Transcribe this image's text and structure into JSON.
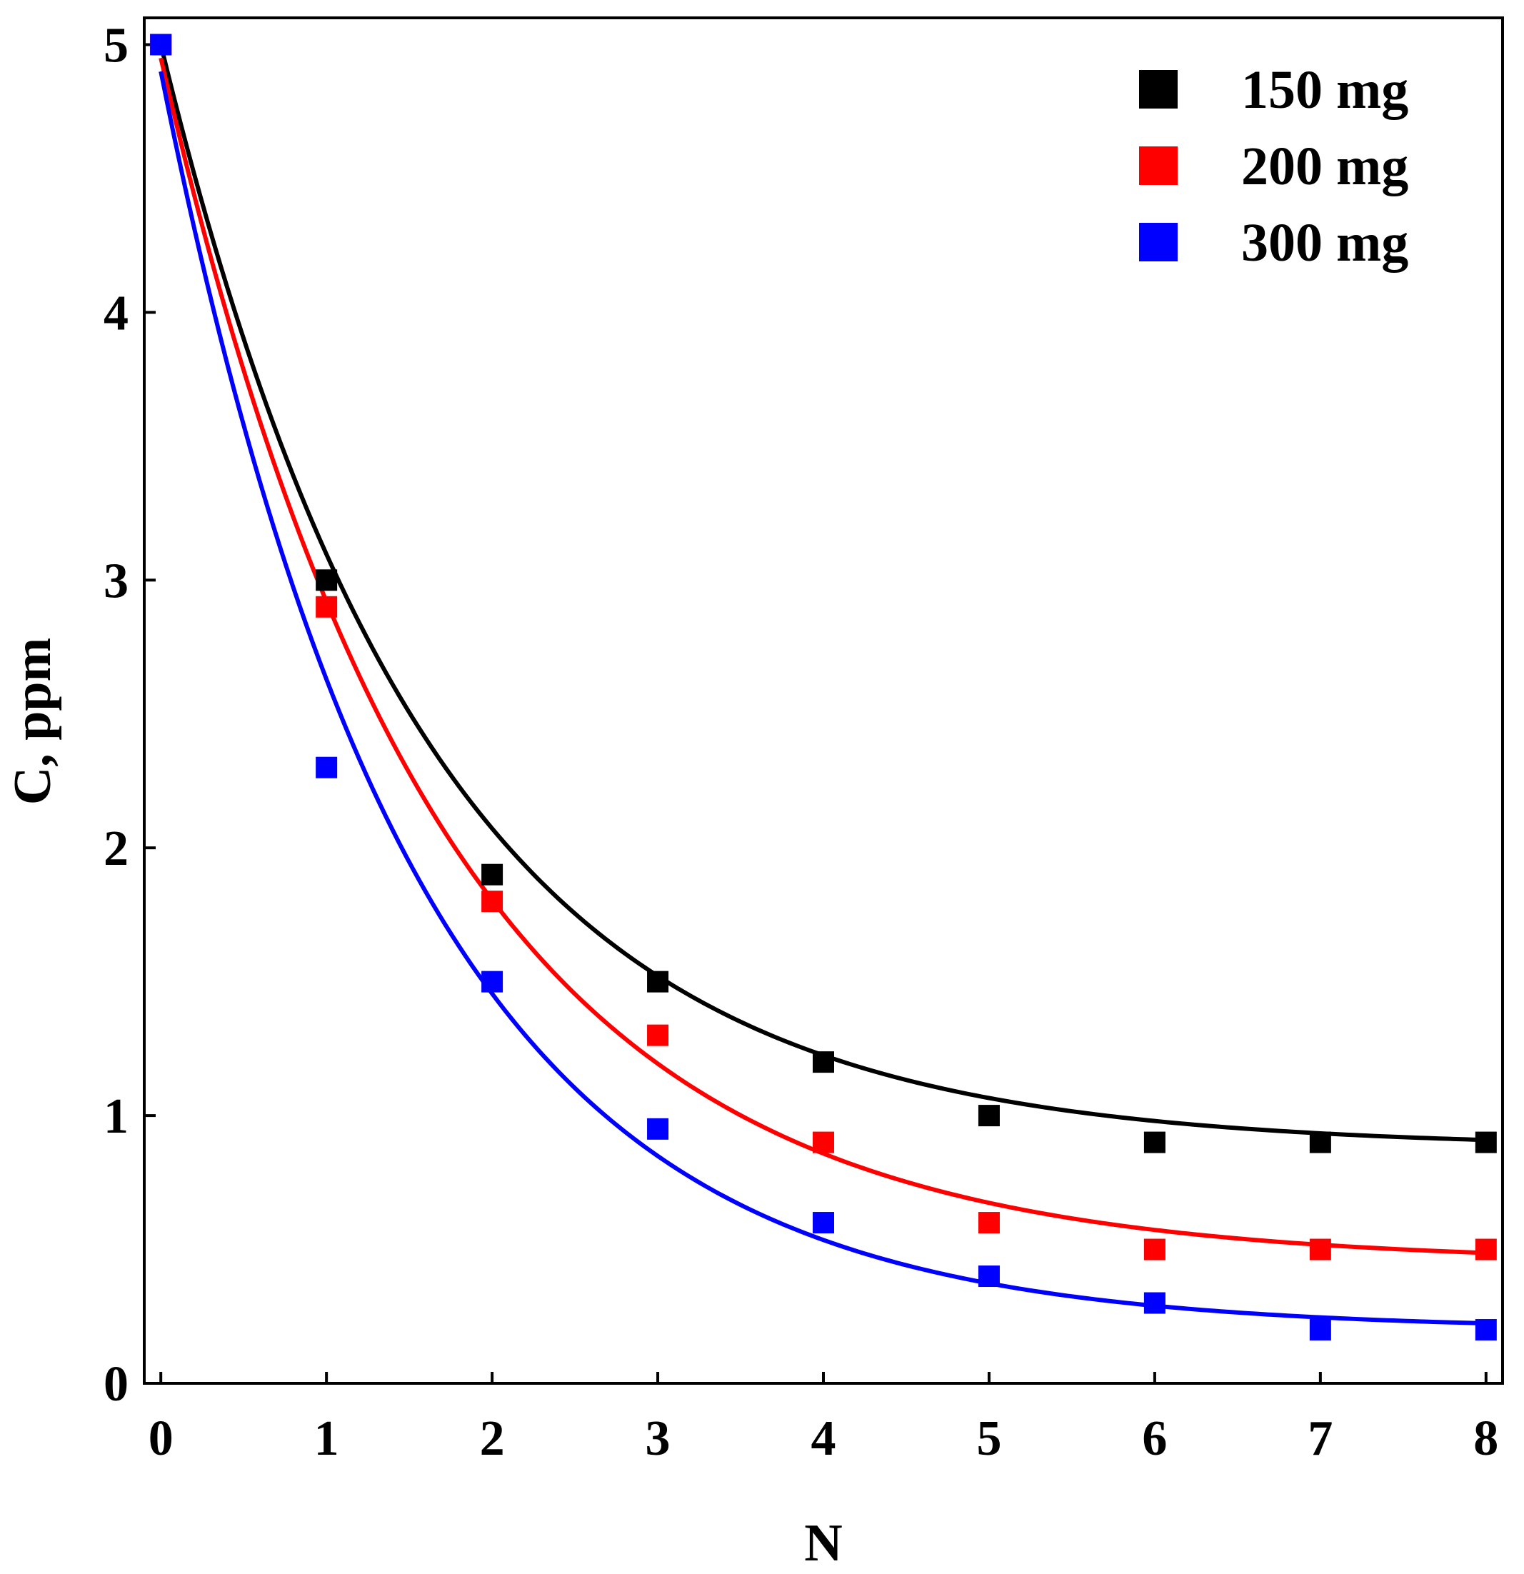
{
  "chart_data": {
    "type": "scatter",
    "title": "",
    "xlabel": "N",
    "ylabel": "C, ppm",
    "xlim": [
      -0.1,
      8.1
    ],
    "ylim": [
      0,
      5.1
    ],
    "xticks": [
      0,
      1,
      2,
      3,
      4,
      5,
      6,
      7,
      8
    ],
    "yticks": [
      0,
      1,
      2,
      3,
      4,
      5
    ],
    "xtick_labels": [
      "0",
      "1",
      "2",
      "3",
      "4",
      "5",
      "6",
      "7",
      "8"
    ],
    "ytick_labels": [
      "0",
      "1",
      "2",
      "3",
      "4",
      "5"
    ],
    "grid": false,
    "legend_position": "top-right",
    "x": [
      0,
      1,
      2,
      3,
      4,
      5,
      6,
      7,
      8
    ],
    "series": [
      {
        "name": "150 mg",
        "color": "#000000",
        "marker": "square",
        "values": [
          5.0,
          3.0,
          1.9,
          1.5,
          1.2,
          1.0,
          0.9,
          0.9,
          0.9
        ],
        "fit": {
          "type": "exponential decay",
          "y0": 0.88,
          "a": 4.12,
          "k": 0.62
        }
      },
      {
        "name": "200 mg",
        "color": "#ff0000",
        "marker": "square",
        "values": [
          5.0,
          2.9,
          1.8,
          1.3,
          0.9,
          0.6,
          0.5,
          0.5,
          0.5
        ],
        "fit": {
          "type": "exponential decay",
          "y0": 0.45,
          "a": 4.5,
          "k": 0.6
        }
      },
      {
        "name": "300 mg",
        "color": "#0000ff",
        "marker": "square",
        "values": [
          5.0,
          2.3,
          1.5,
          0.95,
          0.6,
          0.4,
          0.3,
          0.2,
          0.2
        ],
        "fit": {
          "type": "exponential decay",
          "y0": 0.2,
          "a": 4.7,
          "k": 0.66
        }
      }
    ]
  }
}
